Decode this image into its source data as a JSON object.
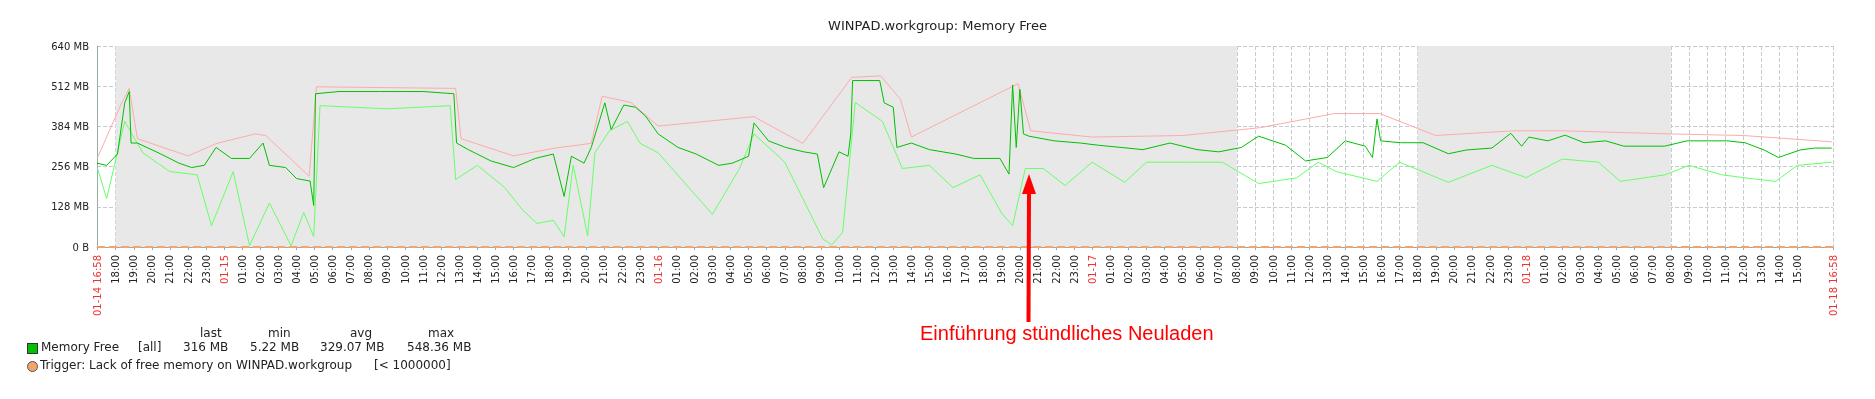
{
  "chart_data": {
    "type": "line",
    "title": "WINPAD.workgroup: Memory Free",
    "xlim": [
      "--01-14T16:58",
      "--01-18T16:58"
    ],
    "xticks": [
      {
        "value": "--01-14T16:58",
        "label": "01-14 16:58"
      },
      {
        "value": "--01-14T18:00",
        "label": "18:00"
      },
      {
        "value": "--01-14T19:00",
        "label": "19:00"
      },
      {
        "value": "--01-14T20:00",
        "label": "20:00"
      },
      {
        "value": "--01-14T21:00",
        "label": "21:00"
      },
      {
        "value": "--01-14T22:00",
        "label": "22:00"
      },
      {
        "value": "--01-14T23:00",
        "label": "23:00"
      },
      {
        "value": "--01-15T00:00",
        "label": "01-15"
      },
      {
        "value": "--01-15T01:00",
        "label": "01:00"
      },
      {
        "value": "--01-15T02:00",
        "label": "02:00"
      },
      {
        "value": "--01-15T03:00",
        "label": "03:00"
      },
      {
        "value": "--01-15T04:00",
        "label": "04:00"
      },
      {
        "value": "--01-15T05:00",
        "label": "05:00"
      },
      {
        "value": "--01-15T06:00",
        "label": "06:00"
      },
      {
        "value": "--01-15T07:00",
        "label": "07:00"
      },
      {
        "value": "--01-15T08:00",
        "label": "08:00"
      },
      {
        "value": "--01-15T09:00",
        "label": "09:00"
      },
      {
        "value": "--01-15T10:00",
        "label": "10:00"
      },
      {
        "value": "--01-15T11:00",
        "label": "11:00"
      },
      {
        "value": "--01-15T12:00",
        "label": "12:00"
      },
      {
        "value": "--01-15T13:00",
        "label": "13:00"
      },
      {
        "value": "--01-15T14:00",
        "label": "14:00"
      },
      {
        "value": "--01-15T15:00",
        "label": "15:00"
      },
      {
        "value": "--01-15T16:00",
        "label": "16:00"
      },
      {
        "value": "--01-15T17:00",
        "label": "17:00"
      },
      {
        "value": "--01-15T18:00",
        "label": "18:00"
      },
      {
        "value": "--01-15T19:00",
        "label": "19:00"
      },
      {
        "value": "--01-15T20:00",
        "label": "20:00"
      },
      {
        "value": "--01-15T21:00",
        "label": "21:00"
      },
      {
        "value": "--01-15T22:00",
        "label": "22:00"
      },
      {
        "value": "--01-15T23:00",
        "label": "23:00"
      },
      {
        "value": "--01-16T00:00",
        "label": "01-16"
      },
      {
        "value": "--01-16T01:00",
        "label": "01:00"
      },
      {
        "value": "--01-16T02:00",
        "label": "02:00"
      },
      {
        "value": "--01-16T03:00",
        "label": "03:00"
      },
      {
        "value": "--01-16T04:00",
        "label": "04:00"
      },
      {
        "value": "--01-16T05:00",
        "label": "05:00"
      },
      {
        "value": "--01-16T06:00",
        "label": "06:00"
      },
      {
        "value": "--01-16T07:00",
        "label": "07:00"
      },
      {
        "value": "--01-16T08:00",
        "label": "08:00"
      },
      {
        "value": "--01-16T09:00",
        "label": "09:00"
      },
      {
        "value": "--01-16T10:00",
        "label": "10:00"
      },
      {
        "value": "--01-16T11:00",
        "label": "11:00"
      },
      {
        "value": "--01-16T12:00",
        "label": "12:00"
      },
      {
        "value": "--01-16T13:00",
        "label": "13:00"
      },
      {
        "value": "--01-16T14:00",
        "label": "14:00"
      },
      {
        "value": "--01-16T15:00",
        "label": "15:00"
      },
      {
        "value": "--01-16T16:00",
        "label": "16:00"
      },
      {
        "value": "--01-16T17:00",
        "label": "17:00"
      },
      {
        "value": "--01-16T18:00",
        "label": "18:00"
      },
      {
        "value": "--01-16T19:00",
        "label": "19:00"
      },
      {
        "value": "--01-16T20:00",
        "label": "20:00"
      },
      {
        "value": "--01-16T21:00",
        "label": "21:00"
      },
      {
        "value": "--01-16T22:00",
        "label": "22:00"
      },
      {
        "value": "--01-16T23:00",
        "label": "23:00"
      },
      {
        "value": "--01-17T00:00",
        "label": "01-17"
      },
      {
        "value": "--01-17T01:00",
        "label": "01:00"
      },
      {
        "value": "--01-17T02:00",
        "label": "02:00"
      },
      {
        "value": "--01-17T03:00",
        "label": "03:00"
      },
      {
        "value": "--01-17T04:00",
        "label": "04:00"
      },
      {
        "value": "--01-17T05:00",
        "label": "05:00"
      },
      {
        "value": "--01-17T06:00",
        "label": "06:00"
      },
      {
        "value": "--01-17T07:00",
        "label": "07:00"
      },
      {
        "value": "--01-17T08:00",
        "label": "08:00"
      },
      {
        "value": "--01-17T09:00",
        "label": "09:00"
      },
      {
        "value": "--01-17T10:00",
        "label": "10:00"
      },
      {
        "value": "--01-17T11:00",
        "label": "11:00"
      },
      {
        "value": "--01-17T12:00",
        "label": "12:00"
      },
      {
        "value": "--01-17T13:00",
        "label": "13:00"
      },
      {
        "value": "--01-17T14:00",
        "label": "14:00"
      },
      {
        "value": "--01-17T15:00",
        "label": "15:00"
      },
      {
        "value": "--01-17T16:00",
        "label": "16:00"
      },
      {
        "value": "--01-17T17:00",
        "label": "17:00"
      },
      {
        "value": "--01-17T18:00",
        "label": "18:00"
      },
      {
        "value": "--01-17T19:00",
        "label": "19:00"
      },
      {
        "value": "--01-17T20:00",
        "label": "20:00"
      },
      {
        "value": "--01-17T21:00",
        "label": "21:00"
      },
      {
        "value": "--01-17T22:00",
        "label": "22:00"
      },
      {
        "value": "--01-17T23:00",
        "label": "23:00"
      },
      {
        "value": "--01-18T00:00",
        "label": "01-18"
      },
      {
        "value": "--01-18T01:00",
        "label": "01:00"
      },
      {
        "value": "--01-18T02:00",
        "label": "02:00"
      },
      {
        "value": "--01-18T03:00",
        "label": "03:00"
      },
      {
        "value": "--01-18T04:00",
        "label": "04:00"
      },
      {
        "value": "--01-18T05:00",
        "label": "05:00"
      },
      {
        "value": "--01-18T06:00",
        "label": "06:00"
      },
      {
        "value": "--01-18T07:00",
        "label": "07:00"
      },
      {
        "value": "--01-18T08:00",
        "label": "08:00"
      },
      {
        "value": "--01-18T09:00",
        "label": "09:00"
      },
      {
        "value": "--01-18T10:00",
        "label": "10:00"
      },
      {
        "value": "--01-18T11:00",
        "label": "11:00"
      },
      {
        "value": "--01-18T12:00",
        "label": "12:00"
      },
      {
        "value": "--01-18T13:00",
        "label": "13:00"
      },
      {
        "value": "--01-18T14:00",
        "label": "14:00"
      },
      {
        "value": "--01-18T15:00",
        "label": "15:00"
      },
      {
        "value": "--01-18T16:58",
        "label": "01-18 16:58"
      }
    ],
    "ylim": [
      0,
      640
    ],
    "yticks": [
      {
        "value": 0,
        "label": "0 B"
      },
      {
        "value": 128,
        "label": "128 MB"
      },
      {
        "value": 256,
        "label": "256 MB"
      },
      {
        "value": 384,
        "label": "384 MB"
      },
      {
        "value": 512,
        "label": "512 MB"
      },
      {
        "value": 640,
        "label": "640 MB"
      }
    ],
    "grid": true,
    "legend": "bottom left",
    "marker": "none",
    "line_style": "solid",
    "series": [
      {
        "color": "#66ff66",
        "x": [
          "--01-14T17:00",
          "--01-14T17:30",
          "--01-14T18:30",
          "--01-14T19:30",
          "--01-14T21:00",
          "--01-14T22:30",
          "--01-14T23:18",
          "--01-15T00:30",
          "--01-15T01:24",
          "--01-15T02:30",
          "--01-15T03:42",
          "--01-15T04:24",
          "--01-15T04:57",
          "--01-15T05:18",
          "--01-15T09:00",
          "--01-15T12:30",
          "--01-15T12:48",
          "--01-15T14:00",
          "--01-15T15:30",
          "--01-15T16:30",
          "--01-15T17:18",
          "--01-15T18:12",
          "--01-15T18:48",
          "--01-15T19:18",
          "--01-15T20:06",
          "--01-15T20:30",
          "--01-15T21:18",
          "--01-15T22:18",
          "--01-15T23:00",
          "--01-16T00:00",
          "--01-16T03:00",
          "--01-16T04:30",
          "--01-16T05:18",
          "--01-16T07:00",
          "--01-16T09:06",
          "--01-16T09:36",
          "--01-16T10:12",
          "--01-16T10:54",
          "--01-16T12:24",
          "--01-16T13:30",
          "--01-16T15:00",
          "--01-16T16:18",
          "--01-16T17:48",
          "--01-16T19:00",
          "--01-16T19:36",
          "--01-16T20:18",
          "--01-16T21:18",
          "--01-16T22:30",
          "--01-17T00:00",
          "--01-17T01:48",
          "--01-17T03:00",
          "--01-17T05:30",
          "--01-17T07:12",
          "--01-17T09:12",
          "--01-17T11:18",
          "--01-17T12:30",
          "--01-17T13:30",
          "--01-17T15:45",
          "--01-17T17:00",
          "--01-17T19:42",
          "--01-17T22:06",
          "--01-18T00:00",
          "--01-18T02:00",
          "--01-18T04:00",
          "--01-18T05:12",
          "--01-18T07:42",
          "--01-18T09:00",
          "--01-18T10:48",
          "--01-18T12:24",
          "--01-18T13:48",
          "--01-18T15:00",
          "--01-18T16:54"
        ],
        "values": [
          250,
          154,
          400,
          300,
          240,
          230,
          68,
          240,
          4,
          140,
          4,
          110,
          33,
          450,
          440,
          450,
          215,
          260,
          190,
          118,
          75,
          85,
          33,
          260,
          35,
          300,
          370,
          400,
          330,
          300,
          104,
          250,
          360,
          270,
          26,
          7,
          47,
          460,
          400,
          250,
          260,
          189,
          230,
          107,
          68,
          250,
          250,
          196,
          270,
          206,
          270,
          270,
          270,
          202,
          220,
          270,
          240,
          209,
          270,
          206,
          260,
          221,
          280,
          270,
          209,
          230,
          260,
          230,
          218,
          209,
          260,
          270
        ]
      },
      {
        "color": "#ffaaaa",
        "x": [
          "--01-14T17:00",
          "--01-14T18:18",
          "--01-14T18:45",
          "--01-14T19:12",
          "--01-14T22:00",
          "--01-14T23:36",
          "--01-15T01:42",
          "--01-15T02:18",
          "--01-15T04:42",
          "--01-15T05:06",
          "--01-15T12:48",
          "--01-15T13:06",
          "--01-15T16:00",
          "--01-15T18:18",
          "--01-15T20:18",
          "--01-15T20:54",
          "--01-15T22:30",
          "--01-16T00:00",
          "--01-16T05:18",
          "--01-16T08:00",
          "--01-16T10:42",
          "--01-16T12:18",
          "--01-16T13:24",
          "--01-16T14:00",
          "--01-16T19:54",
          "--01-16T20:36",
          "--01-17T00:00",
          "--01-17T05:00",
          "--01-17T09:18",
          "--01-17T13:24",
          "--01-17T15:54",
          "--01-17T19:00",
          "--01-17T23:18",
          "--01-18T02:00",
          "--01-18T08:00",
          "--01-18T12:00",
          "--01-18T16:54"
        ],
        "values": [
          285,
          455,
          505,
          345,
          290,
          330,
          360,
          355,
          225,
          510,
          505,
          345,
          290,
          315,
          330,
          480,
          460,
          385,
          415,
          330,
          540,
          545,
          470,
          350,
          520,
          370,
          350,
          355,
          380,
          425,
          425,
          355,
          370,
          370,
          360,
          355,
          335
        ]
      },
      {
        "name": "Memory Free",
        "color": "#00c000",
        "x": [
          "--01-14T16:58",
          "--01-14T17:30",
          "--01-14T18:06",
          "--01-14T18:30",
          "--01-14T18:45",
          "--01-14T18:51",
          "--01-14T19:12",
          "--01-14T20:30",
          "--01-14T21:30",
          "--01-14T22:12",
          "--01-14T22:54",
          "--01-14T23:33",
          "--01-15T00:24",
          "--01-15T01:24",
          "--01-15T02:09",
          "--01-15T02:30",
          "--01-15T03:24",
          "--01-15T04:00",
          "--01-15T04:45",
          "--01-15T04:57",
          "--01-15T05:03",
          "--01-15T06:21",
          "--01-15T08:36",
          "--01-15T11:00",
          "--01-15T12:42",
          "--01-15T12:51",
          "--01-15T13:30",
          "--01-15T14:45",
          "--01-15T16:00",
          "--01-15T17:12",
          "--01-15T18:12",
          "--01-15T18:48",
          "--01-15T19:12",
          "--01-15T19:54",
          "--01-15T20:18",
          "--01-15T21:03",
          "--01-15T21:24",
          "--01-15T22:06",
          "--01-15T22:45",
          "--01-15T23:18",
          "--01-16T00:00",
          "--01-16T01:06",
          "--01-16T02:06",
          "--01-16T03:21",
          "--01-16T04:06",
          "--01-16T05:00",
          "--01-16T05:18",
          "--01-16T06:06",
          "--01-16T07:03",
          "--01-16T08:03",
          "--01-16T08:48",
          "--01-16T09:09",
          "--01-16T10:00",
          "--01-16T10:30",
          "--01-16T10:39",
          "--01-16T10:45",
          "--01-16T12:15",
          "--01-16T12:30",
          "--01-16T13:00",
          "--01-16T13:12",
          "--01-16T14:00",
          "--01-16T15:00",
          "--01-16T16:27",
          "--01-16T17:27",
          "--01-16T18:54",
          "--01-16T19:24",
          "--01-16T19:36",
          "--01-16T19:48",
          "--01-16T20:00",
          "--01-16T20:12",
          "--01-16T20:30",
          "--01-16T21:54",
          "--01-16T23:21",
          "--01-17T00:21",
          "--01-17T01:36",
          "--01-17T02:48",
          "--01-17T04:18",
          "--01-17T05:48",
          "--01-17T07:00",
          "--01-17T08:15",
          "--01-17T09:12",
          "--01-17T10:42",
          "--01-17T11:48",
          "--01-17T13:00",
          "--01-17T14:00",
          "--01-17T15:06",
          "--01-17T15:30",
          "--01-17T15:45",
          "--01-17T15:57",
          "--01-17T17:03",
          "--01-17T18:18",
          "--01-17T19:42",
          "--01-17T20:42",
          "--01-17T22:06",
          "--01-17T23:09",
          "--01-17T23:45",
          "--01-18T00:09",
          "--01-18T01:12",
          "--01-18T02:09",
          "--01-18T03:12",
          "--01-18T04:24",
          "--01-18T05:24",
          "--01-18T06:27",
          "--01-18T07:39",
          "--01-18T08:54",
          "--01-18T10:06",
          "--01-18T11:06",
          "--01-18T12:06",
          "--01-18T13:09",
          "--01-18T13:57",
          "--01-18T15:09",
          "--01-18T15:57",
          "--01-18T16:54"
        ],
        "values": [
          267,
          260,
          296,
          459,
          495,
          331,
          331,
          296,
          267,
          253,
          260,
          317,
          282,
          282,
          331,
          260,
          253,
          218,
          210,
          132,
          488,
          495,
          495,
          495,
          488,
          331,
          310,
          274,
          253,
          282,
          296,
          161,
          289,
          267,
          317,
          459,
          374,
          452,
          445,
          417,
          360,
          317,
          296,
          260,
          267,
          289,
          395,
          338,
          317,
          303,
          296,
          189,
          303,
          289,
          360,
          530,
          530,
          459,
          445,
          317,
          331,
          310,
          296,
          282,
          282,
          232,
          516,
          317,
          502,
          360,
          353,
          338,
          331,
          324,
          317,
          310,
          331,
          310,
          303,
          317,
          353,
          324,
          274,
          285,
          338,
          321,
          285,
          408,
          338,
          332,
          332,
          297,
          309,
          315,
          362,
          321,
          350,
          338,
          356,
          332,
          338,
          321,
          321,
          321,
          338,
          338,
          338,
          332,
          309,
          285,
          309,
          315,
          315
        ]
      }
    ],
    "bands": [
      {
        "axis": "x",
        "from": "--01-14T18:00",
        "to": "--01-17T08:00",
        "color": "#e8e8e8"
      },
      {
        "axis": "x",
        "from": "--01-17T18:00",
        "to": "--01-18T08:00",
        "color": "#e8e8e8"
      }
    ],
    "ref_lines": [
      {
        "axis": "y",
        "value": 0.95,
        "label": "Trigger: Lack of free memory on WINPAD.workgroup",
        "color": "#f4a46a",
        "line_style": "dashed"
      }
    ],
    "annotations": [
      "last",
      "min",
      "avg",
      "max",
      "[all]",
      "316 MB",
      "5.22 MB",
      "329.07 MB",
      "548.36 MB",
      "[< 1000000]",
      "Einführung stündliches Neuladen"
    ]
  }
}
